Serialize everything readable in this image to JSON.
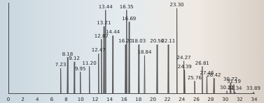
{
  "chart_data": {
    "type": "line",
    "color": "#555555",
    "grid": false,
    "tick_labels": "x",
    "xlim": [
      0,
      34
    ],
    "xticks": [
      0,
      2,
      4,
      6,
      8,
      10,
      12,
      14,
      16,
      18,
      20,
      22,
      24,
      26,
      28,
      30,
      32,
      34
    ],
    "ylim": [
      0,
      100
    ],
    "x": [
      0,
      7.18,
      7.23,
      7.28,
      8.13,
      8.18,
      8.23,
      9.07,
      9.12,
      9.17,
      9.9,
      9.95,
      10.0,
      11.15,
      11.2,
      11.25,
      12.42,
      12.47,
      12.52,
      12.82,
      12.87,
      12.92,
      13.16,
      13.21,
      13.26,
      13.39,
      13.44,
      13.49,
      14.39,
      14.44,
      14.49,
      16.15,
      16.2,
      16.25,
      16.3,
      16.35,
      16.4,
      16.64,
      16.69,
      16.74,
      17.98,
      18.03,
      18.08,
      18.79,
      18.84,
      18.89,
      20.51,
      20.56,
      20.61,
      22.06,
      22.11,
      22.16,
      23.25,
      23.3,
      23.35,
      24.22,
      24.27,
      24.32,
      24.34,
      24.39,
      24.44,
      25.71,
      25.76,
      25.81,
      26.76,
      26.81,
      26.86,
      27.41,
      27.46,
      27.51,
      28.37,
      28.42,
      28.47,
      30.17,
      30.22,
      30.27,
      30.67,
      30.72,
      30.77,
      31.14,
      31.19,
      31.24,
      31.29,
      31.34,
      31.39,
      33.84,
      33.89,
      33.94,
      34
    ],
    "values": [
      0,
      0,
      28,
      0,
      0,
      40,
      0,
      0,
      35,
      0,
      0,
      24,
      0,
      0,
      30,
      0,
      0,
      44,
      0,
      0,
      60,
      0,
      0,
      74,
      0,
      0,
      92,
      0,
      0,
      64,
      0,
      0,
      54,
      0,
      0,
      92,
      0,
      0,
      79,
      0,
      0,
      54,
      0,
      0,
      42,
      0,
      0,
      54,
      0,
      0,
      54,
      0,
      0,
      94,
      0,
      0,
      36,
      0,
      0,
      26,
      0,
      0,
      14,
      0,
      0,
      30,
      0,
      0,
      19,
      0,
      0,
      17,
      0,
      0,
      3,
      0,
      0,
      12,
      0,
      0,
      10,
      0,
      0,
      2,
      0,
      0,
      2,
      0,
      0
    ],
    "annotations": [
      {
        "x": 7.23,
        "y": 28,
        "text": "7.23"
      },
      {
        "x": 8.18,
        "y": 40,
        "text": "8.18"
      },
      {
        "x": 9.12,
        "y": 35,
        "text": "9.12"
      },
      {
        "x": 9.95,
        "y": 24,
        "text": "9.95"
      },
      {
        "x": 11.2,
        "y": 30,
        "text": "11.20"
      },
      {
        "x": 12.47,
        "y": 44,
        "text": "12.47"
      },
      {
        "x": 12.87,
        "y": 60,
        "text": "12.87"
      },
      {
        "x": 13.21,
        "y": 74,
        "text": "13.21"
      },
      {
        "x": 13.44,
        "y": 92,
        "text": "13.44"
      },
      {
        "x": 14.44,
        "y": 64,
        "text": "14.44"
      },
      {
        "x": 16.2,
        "y": 54,
        "text": "16.20"
      },
      {
        "x": 16.35,
        "y": 92,
        "text": "16.35"
      },
      {
        "x": 16.69,
        "y": 79,
        "text": "16.69"
      },
      {
        "x": 18.03,
        "y": 54,
        "text": "18.03"
      },
      {
        "x": 18.84,
        "y": 42,
        "text": "18.84"
      },
      {
        "x": 20.56,
        "y": 54,
        "text": "20.56"
      },
      {
        "x": 22.11,
        "y": 54,
        "text": "22.11"
      },
      {
        "x": 23.3,
        "y": 94,
        "text": "23.30"
      },
      {
        "x": 24.27,
        "y": 36,
        "text": "24.27"
      },
      {
        "x": 24.39,
        "y": 26,
        "text": "24.39"
      },
      {
        "x": 25.76,
        "y": 14,
        "text": "25.76"
      },
      {
        "x": 26.81,
        "y": 30,
        "text": "26.81"
      },
      {
        "x": 27.46,
        "y": 19,
        "text": "27.46"
      },
      {
        "x": 28.42,
        "y": 17,
        "text": "28.42"
      },
      {
        "x": 30.22,
        "y": 3,
        "text": "30.22"
      },
      {
        "x": 30.72,
        "y": 12,
        "text": "30.72"
      },
      {
        "x": 31.19,
        "y": 10,
        "text": "31.19"
      },
      {
        "x": 31.34,
        "y": 2,
        "text": "31.34"
      },
      {
        "x": 33.89,
        "y": 2,
        "text": "33.89"
      }
    ]
  }
}
